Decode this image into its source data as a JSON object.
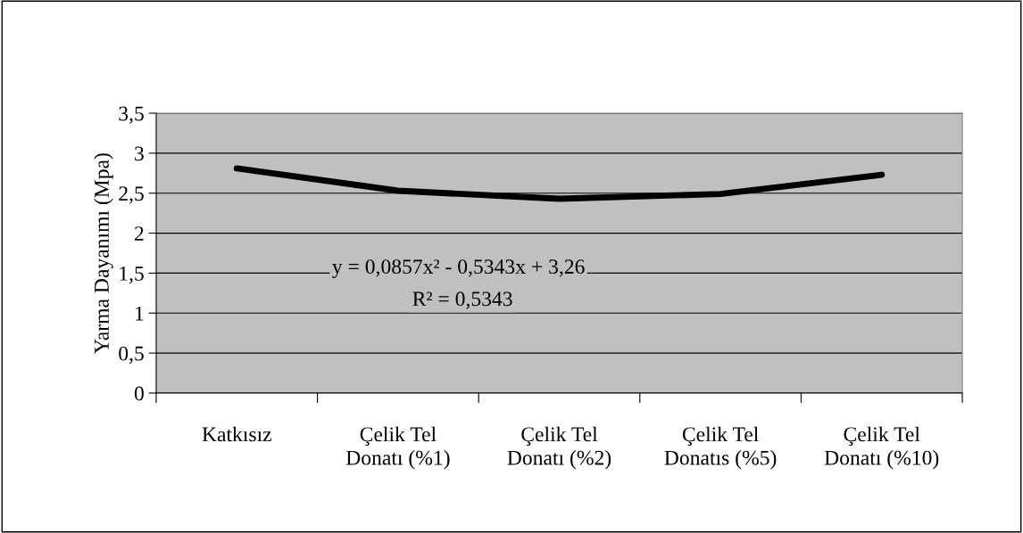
{
  "chart_data": {
    "type": "line",
    "ylabel": "Yarma Dayanımı (Mpa)",
    "categories": [
      "Katkısız",
      "Çelik Tel\nDonatı (%1)",
      "Çelik Tel\nDonatı (%2)",
      "Çelik Tel\nDonatıs (%5)",
      "Çelik Tel\nDonatı (%10)"
    ],
    "series": [
      {
        "color": "#000000",
        "values": [
          2.81,
          2.53,
          2.43,
          2.49,
          2.73
        ]
      }
    ],
    "ylim": [
      0,
      3.5
    ],
    "yticks": [
      {
        "value": 0,
        "label": "0"
      },
      {
        "value": 0.5,
        "label": "0,5"
      },
      {
        "value": 1,
        "label": "1"
      },
      {
        "value": 1.5,
        "label": "1,5"
      },
      {
        "value": 2,
        "label": "2"
      },
      {
        "value": 2.5,
        "label": "2,5"
      },
      {
        "value": 3,
        "label": "3"
      },
      {
        "value": 3.5,
        "label": "3,5"
      }
    ],
    "grid": "y",
    "marker": "none",
    "line_style": "solid",
    "annotations": [
      "y = 0,0857x² - 0,5343x + 3,26",
      "R² = 0,5343"
    ]
  }
}
